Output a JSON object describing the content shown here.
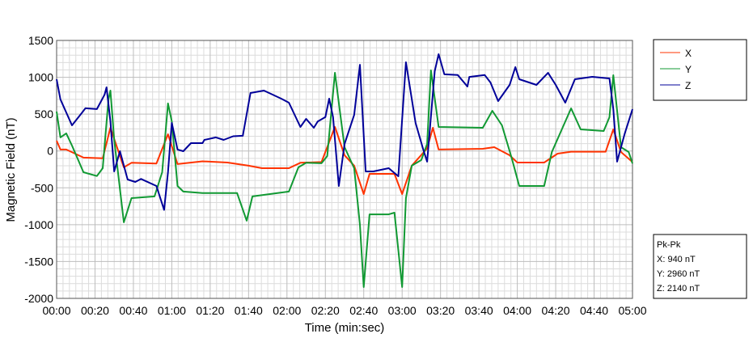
{
  "chart_data": {
    "type": "line",
    "title": "",
    "xlabel": "Time (min:sec)",
    "ylabel": "Magnetic Field (nT)",
    "xlim": [
      "00:00",
      "05:00"
    ],
    "ylim": [
      -2000,
      1500
    ],
    "grid": true,
    "legend_placement": "right",
    "x_ticks": [
      "00:00",
      "00:20",
      "00:40",
      "01:00",
      "01:20",
      "01:40",
      "02:00",
      "02:20",
      "02:40",
      "03:00",
      "03:20",
      "03:40",
      "04:00",
      "04:20",
      "04:40",
      "05:00"
    ],
    "y_ticks": [
      "1500",
      "1000",
      "500",
      "0",
      "-500",
      "-1000",
      "-1500",
      "-2000"
    ],
    "series": [
      {
        "name": "X",
        "color": "#ff3300",
        "points": [
          [
            "00:00",
            140
          ],
          [
            "00:02",
            20
          ],
          [
            "00:05",
            20
          ],
          [
            "00:14",
            -90
          ],
          [
            "00:24",
            -100
          ],
          [
            "00:28",
            315
          ],
          [
            "00:35",
            -222
          ],
          [
            "00:39",
            -160
          ],
          [
            "00:52",
            -170
          ],
          [
            "00:58",
            227
          ],
          [
            "01:03",
            -178
          ],
          [
            "01:16",
            -140
          ],
          [
            "01:29",
            -157
          ],
          [
            "01:40",
            -200
          ],
          [
            "01:47",
            -233
          ],
          [
            "02:01",
            -233
          ],
          [
            "02:07",
            -160
          ],
          [
            "02:18",
            -150
          ],
          [
            "02:25",
            326
          ],
          [
            "02:30",
            -58
          ],
          [
            "02:35",
            -200
          ],
          [
            "02:40",
            -585
          ],
          [
            "02:43",
            -310
          ],
          [
            "02:56",
            -310
          ],
          [
            "03:00",
            -585
          ],
          [
            "03:05",
            -200
          ],
          [
            "03:13",
            35
          ],
          [
            "03:16",
            315
          ],
          [
            "03:19",
            20
          ],
          [
            "03:42",
            30
          ],
          [
            "03:48",
            52
          ],
          [
            "03:56",
            -58
          ],
          [
            "04:00",
            -157
          ],
          [
            "04:14",
            -157
          ],
          [
            "04:21",
            -36
          ],
          [
            "04:28",
            -10
          ],
          [
            "04:46",
            -10
          ],
          [
            "04:50",
            293
          ],
          [
            "04:54",
            -14
          ],
          [
            "05:00",
            -150
          ]
        ]
      },
      {
        "name": "Y",
        "color": "#119933",
        "points": [
          [
            "00:00",
            535
          ],
          [
            "00:02",
            184
          ],
          [
            "00:05",
            239
          ],
          [
            "00:08",
            74
          ],
          [
            "00:14",
            -288
          ],
          [
            "00:21",
            -340
          ],
          [
            "00:24",
            -233
          ],
          [
            "00:27",
            700
          ],
          [
            "00:28",
            820
          ],
          [
            "00:30",
            150
          ],
          [
            "00:35",
            -968
          ],
          [
            "00:39",
            -640
          ],
          [
            "00:51",
            -617
          ],
          [
            "00:55",
            -288
          ],
          [
            "00:58",
            645
          ],
          [
            "01:00",
            403
          ],
          [
            "01:03",
            -475
          ],
          [
            "01:06",
            -551
          ],
          [
            "01:16",
            -570
          ],
          [
            "01:34",
            -570
          ],
          [
            "01:39",
            -946
          ],
          [
            "01:42",
            -617
          ],
          [
            "02:01",
            -551
          ],
          [
            "02:06",
            -222
          ],
          [
            "02:10",
            -160
          ],
          [
            "02:18",
            -167
          ],
          [
            "02:21",
            -69
          ],
          [
            "02:25",
            1061
          ],
          [
            "02:30",
            52
          ],
          [
            "02:35",
            -233
          ],
          [
            "02:38",
            -1000
          ],
          [
            "02:40",
            -1846
          ],
          [
            "02:43",
            -860
          ],
          [
            "02:53",
            -860
          ],
          [
            "02:56",
            -837
          ],
          [
            "03:00",
            -1846
          ],
          [
            "03:02",
            -640
          ],
          [
            "03:05",
            -200
          ],
          [
            "03:10",
            -123
          ],
          [
            "03:13",
            96
          ],
          [
            "03:15",
            1094
          ],
          [
            "03:19",
            326
          ],
          [
            "03:42",
            315
          ],
          [
            "03:47",
            546
          ],
          [
            "03:52",
            348
          ],
          [
            "03:57",
            -90
          ],
          [
            "04:01",
            -475
          ],
          [
            "04:14",
            -475
          ],
          [
            "04:18",
            -14
          ],
          [
            "04:28",
            578
          ],
          [
            "04:33",
            293
          ],
          [
            "04:45",
            271
          ],
          [
            "04:48",
            458
          ],
          [
            "04:50",
            1028
          ],
          [
            "04:54",
            52
          ],
          [
            "04:58",
            -14
          ],
          [
            "05:00",
            -170
          ]
        ]
      },
      {
        "name": "Z",
        "color": "#000099",
        "points": [
          [
            "00:00",
            973
          ],
          [
            "00:02",
            700
          ],
          [
            "00:08",
            348
          ],
          [
            "00:13",
            513
          ],
          [
            "00:15",
            580
          ],
          [
            "00:21",
            568
          ],
          [
            "00:25",
            765
          ],
          [
            "00:26",
            864
          ],
          [
            "00:28",
            403
          ],
          [
            "00:30",
            -277
          ],
          [
            "00:33",
            -3
          ],
          [
            "00:37",
            -387
          ],
          [
            "00:41",
            -420
          ],
          [
            "00:44",
            -380
          ],
          [
            "00:52",
            -475
          ],
          [
            "00:56",
            -800
          ],
          [
            "00:58",
            -288
          ],
          [
            "01:00",
            381
          ],
          [
            "01:03",
            20
          ],
          [
            "01:06",
            -3
          ],
          [
            "01:10",
            107
          ],
          [
            "01:16",
            107
          ],
          [
            "01:17",
            150
          ],
          [
            "01:23",
            184
          ],
          [
            "01:27",
            150
          ],
          [
            "01:32",
            200
          ],
          [
            "01:37",
            206
          ],
          [
            "01:41",
            787
          ],
          [
            "01:48",
            820
          ],
          [
            "01:57",
            710
          ],
          [
            "02:01",
            655
          ],
          [
            "02:07",
            326
          ],
          [
            "02:10",
            436
          ],
          [
            "02:14",
            315
          ],
          [
            "02:16",
            400
          ],
          [
            "02:20",
            460
          ],
          [
            "02:22",
            710
          ],
          [
            "02:24",
            460
          ],
          [
            "02:27",
            -475
          ],
          [
            "02:30",
            95
          ],
          [
            "02:35",
            490
          ],
          [
            "02:38",
            1170
          ],
          [
            "02:41",
            -277
          ],
          [
            "02:45",
            -277
          ],
          [
            "02:53",
            -233
          ],
          [
            "02:58",
            -343
          ],
          [
            "03:02",
            1204
          ],
          [
            "03:07",
            381
          ],
          [
            "03:11",
            20
          ],
          [
            "03:13",
            -145
          ],
          [
            "03:17",
            1083
          ],
          [
            "03:19",
            1313
          ],
          [
            "03:22",
            1040
          ],
          [
            "03:29",
            1030
          ],
          [
            "03:34",
            875
          ],
          [
            "03:35",
            1005
          ],
          [
            "03:43",
            1030
          ],
          [
            "03:46",
            930
          ],
          [
            "03:50",
            677
          ],
          [
            "03:56",
            897
          ],
          [
            "03:59",
            1138
          ],
          [
            "04:01",
            973
          ],
          [
            "04:10",
            897
          ],
          [
            "04:16",
            1060
          ],
          [
            "04:20",
            897
          ],
          [
            "04:25",
            655
          ],
          [
            "04:30",
            973
          ],
          [
            "04:39",
            1006
          ],
          [
            "04:48",
            984
          ],
          [
            "04:50",
            567
          ],
          [
            "04:52",
            -145
          ],
          [
            "04:56",
            239
          ],
          [
            "05:00",
            567
          ]
        ]
      }
    ]
  },
  "pkpk": {
    "title": "Pk-Pk",
    "x": "X: 940 nT",
    "y": "Y: 2960 nT",
    "z": "Z: 2140 nT"
  }
}
